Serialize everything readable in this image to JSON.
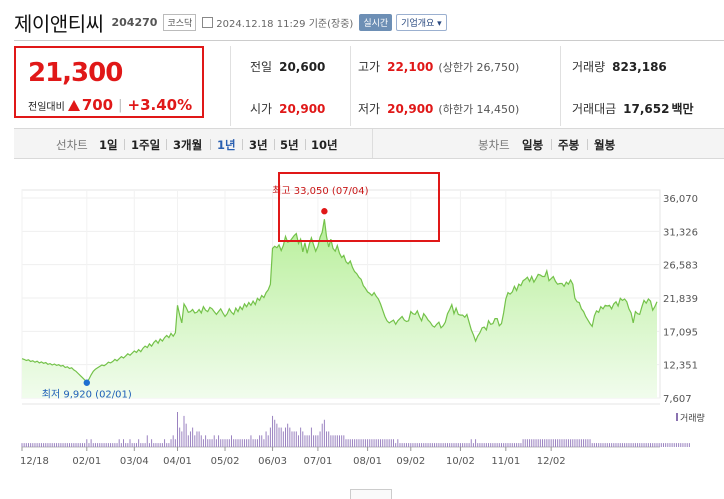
{
  "header": {
    "company": "제이앤티씨",
    "code": "204270",
    "market": "코스닥",
    "datetime": "2024.12.18 11:29 기준(장중)",
    "realtime_label": "실시간",
    "overview_label": "기업개요 ▾"
  },
  "price": {
    "current": "21,300",
    "change_label": "전일대비",
    "change": "700",
    "change_pct": "+3.40%",
    "up_color": "#e01818"
  },
  "stats": {
    "prev_close_label": "전일",
    "prev_close": "20,600",
    "high_label": "고가",
    "high": "22,100",
    "upper_limit": "(상한가 26,750)",
    "volume_label": "거래량",
    "volume": "823,186",
    "open_label": "시가",
    "open": "20,900",
    "low_label": "저가",
    "low": "20,900",
    "lower_limit": "(하한가 14,450)",
    "trade_value_label": "거래대금",
    "trade_value": "17,652",
    "trade_value_unit": "백만"
  },
  "tabs": {
    "line_group": "선차트",
    "line": [
      "1일",
      "1주일",
      "3개월",
      "1년",
      "3년",
      "5년",
      "10년"
    ],
    "active": "1년",
    "candle_group": "봉차트",
    "candle": [
      "일봉",
      "주봉",
      "월봉"
    ]
  },
  "chart_data": {
    "type": "area",
    "y_ticks": [
      "36,070",
      "31,326",
      "26,583",
      "21,839",
      "17,095",
      "12,351",
      "7,607"
    ],
    "ylim": [
      7607,
      36070
    ],
    "x_ticks": [
      "12/18",
      "02/01",
      "03/04",
      "04/01",
      "05/02",
      "06/03",
      "07/01",
      "08/01",
      "09/02",
      "10/02",
      "11/01",
      "12/02"
    ],
    "x_tick_index": [
      0,
      30,
      52,
      72,
      94,
      116,
      137,
      160,
      180,
      203,
      224,
      245
    ],
    "max_label": "최고 33,050 (07/04)",
    "max_index": 140,
    "max_value": 33050,
    "min_label": "최저 9,920 (02/01)",
    "min_index": 30,
    "min_value": 9920,
    "volume_legend": "거래량",
    "series": [
      {
        "values": [
          13200,
          13100,
          12950,
          13050,
          12800,
          12900,
          12700,
          12850,
          12600,
          12750,
          12550,
          12650,
          12400,
          12500,
          12300,
          12450,
          12250,
          12350,
          12150,
          12250,
          11950,
          12050,
          11800,
          11900,
          11600,
          11400,
          11100,
          10800,
          10500,
          10200,
          9920,
          10300,
          10900,
          11400,
          11700,
          11900,
          12100,
          12300,
          12200,
          12400,
          12700,
          12600,
          12800,
          13100,
          12900,
          13200,
          13500,
          13300,
          13600,
          13900,
          13700,
          14000,
          14300,
          14100,
          14500,
          14200,
          14700,
          15000,
          14800,
          15300,
          15000,
          15500,
          15800,
          15400,
          16000,
          15700,
          16200,
          16500,
          16200,
          16800,
          16400,
          16900,
          20800,
          19400,
          18300,
          21000,
          20500,
          19800,
          19900,
          20200,
          19700,
          19800,
          20200,
          19700,
          20600,
          20100,
          19900,
          20500,
          20300,
          19900,
          19500,
          19900,
          20300,
          19700,
          19200,
          19600,
          20300,
          19800,
          19500,
          20400,
          19900,
          20600,
          20200,
          21000,
          20600,
          21200,
          20800,
          21400,
          20900,
          21800,
          21500,
          22200,
          21900,
          22600,
          23000,
          23800,
          28900,
          29200,
          29000,
          29400,
          28600,
          29300,
          30600,
          29800,
          29900,
          30300,
          30700,
          31000,
          29600,
          30200,
          28400,
          29700,
          28200,
          29500,
          30400,
          29400,
          28500,
          29200,
          30500,
          31200,
          33050,
          30600,
          29100,
          30200,
          28900,
          28500,
          29300,
          28200,
          27600,
          27900,
          27000,
          26700,
          27100,
          26200,
          25600,
          25300,
          24800,
          24500,
          23600,
          23200,
          22700,
          22500,
          22200,
          22600,
          22100,
          21700,
          21000,
          20100,
          19200,
          18600,
          18300,
          18500,
          18700,
          18100,
          18600,
          18900,
          19200,
          18700,
          18500,
          18600,
          19900,
          19600,
          19500,
          20000,
          19200,
          18600,
          19600,
          19200,
          18700,
          18400,
          17900,
          17700,
          18100,
          18400,
          17600,
          17900,
          18400,
          19600,
          20200,
          20900,
          19600,
          20400,
          19500,
          19400,
          19400,
          19100,
          19500,
          18400,
          17300,
          16600,
          15700,
          16400,
          16900,
          17600,
          17700,
          17300,
          18600,
          18100,
          18200,
          18900,
          18900,
          17900,
          18200,
          19700,
          21700,
          22600,
          22400,
          22700,
          23500,
          22900,
          23800,
          23600,
          24300,
          24500,
          24800,
          24200,
          24900,
          24100,
          24600,
          25200,
          25100,
          24900,
          24900,
          25700,
          24300,
          24600,
          24900,
          24200,
          23800,
          23900,
          23900,
          23500,
          24100,
          23800,
          24400,
          23800,
          21800,
          21300,
          21200,
          20300,
          19900,
          19200,
          18700,
          18200,
          17800,
          19300,
          20000,
          19800,
          20600,
          20300,
          20800,
          20700,
          20800,
          20300,
          21000,
          21300,
          20700,
          21800,
          21500,
          21700,
          21300,
          20300,
          19700,
          18300,
          19900,
          19600,
          19500,
          20600,
          21500,
          21100,
          21700,
          21400,
          20100,
          20600,
          21300
        ]
      }
    ],
    "volume": [
      1,
      1,
      1,
      1,
      1,
      1,
      1,
      1,
      1,
      1,
      1,
      1,
      1,
      1,
      1,
      1,
      1,
      1,
      1,
      1,
      1,
      1,
      1,
      1,
      1,
      1,
      1,
      1,
      1,
      1,
      2,
      1,
      2,
      1,
      1,
      1,
      1,
      1,
      1,
      1,
      1,
      1,
      1,
      1,
      1,
      2,
      1,
      2,
      1,
      1,
      2,
      1,
      1,
      1,
      2,
      1,
      1,
      1,
      3,
      1,
      2,
      1,
      1,
      1,
      1,
      1,
      2,
      1,
      1,
      2,
      3,
      2,
      9,
      5,
      4,
      8,
      6,
      3,
      4,
      5,
      3,
      4,
      4,
      3,
      2,
      3,
      2,
      2,
      2,
      3,
      2,
      3,
      2,
      2,
      2,
      2,
      2,
      3,
      2,
      2,
      2,
      2,
      2,
      2,
      2,
      2,
      3,
      2,
      2,
      2,
      3,
      3,
      2,
      4,
      3,
      5,
      8,
      7,
      6,
      5,
      5,
      4,
      5,
      6,
      5,
      4,
      4,
      4,
      3,
      5,
      4,
      3,
      3,
      3,
      5,
      3,
      3,
      3,
      4,
      6,
      7,
      4,
      4,
      3,
      3,
      3,
      3,
      3,
      3,
      3,
      2,
      2,
      2,
      2,
      2,
      2,
      2,
      2,
      2,
      2,
      2,
      2,
      2,
      2,
      2,
      2,
      2,
      2,
      2,
      2,
      2,
      2,
      2,
      1,
      2,
      1,
      1,
      1,
      1,
      1,
      1,
      1,
      1,
      1,
      1,
      1,
      1,
      1,
      1,
      1,
      1,
      1,
      1,
      1,
      1,
      1,
      1,
      1,
      1,
      1,
      1,
      1,
      1,
      1,
      1,
      1,
      1,
      1,
      2,
      1,
      2,
      1,
      1,
      1,
      1,
      1,
      1,
      1,
      1,
      1,
      1,
      1,
      1,
      1,
      1,
      1,
      1,
      1,
      1,
      1,
      1,
      1,
      2,
      2,
      2,
      2,
      2,
      2,
      2,
      2,
      2,
      2,
      2,
      2,
      2,
      2,
      2,
      2,
      2,
      2,
      2,
      2,
      2,
      2,
      2,
      2,
      2,
      2,
      2,
      2,
      2,
      2,
      2,
      2,
      1,
      1,
      1,
      1,
      1,
      1,
      1,
      1,
      1,
      1,
      1,
      1,
      1,
      1,
      1,
      1,
      1,
      1,
      1,
      1,
      1,
      1,
      1,
      1,
      1,
      1,
      1,
      1,
      1,
      1,
      1,
      1,
      1,
      1,
      1,
      1,
      1,
      1,
      1,
      1,
      1,
      1,
      1,
      1,
      1,
      1
    ]
  }
}
